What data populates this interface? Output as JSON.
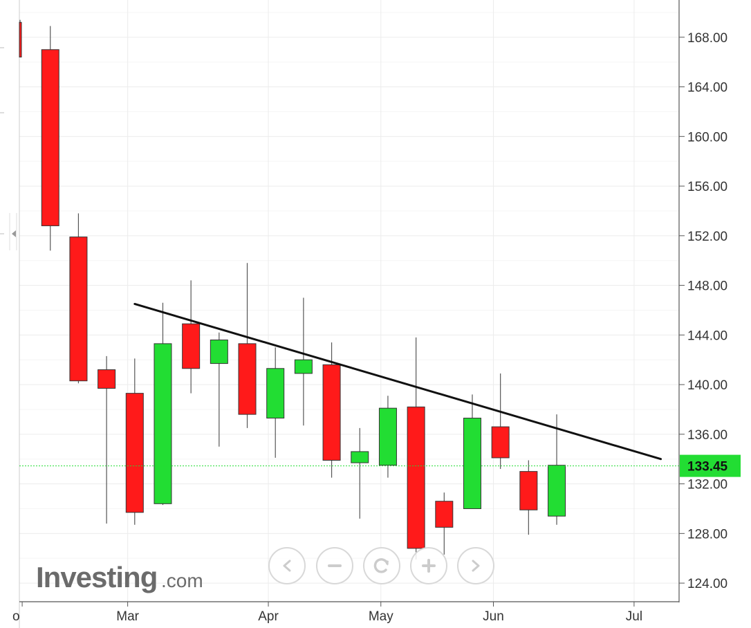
{
  "chart_data": {
    "type": "candlestick",
    "title": "",
    "xlabel": "",
    "ylabel": "",
    "ylim": [
      122.5,
      171.0
    ],
    "y_ticks": [
      "168.00",
      "164.00",
      "160.00",
      "156.00",
      "152.00",
      "148.00",
      "144.00",
      "140.00",
      "136.00",
      "132.00",
      "128.00",
      "124.00"
    ],
    "x_ticks": [
      {
        "label": "o",
        "x": 0
      },
      {
        "label": "Mar",
        "x": 3.75
      },
      {
        "label": "Apr",
        "x": 8.75
      },
      {
        "label": "May",
        "x": 12.75
      },
      {
        "label": "Jun",
        "x": 16.75
      },
      {
        "label": "Jul",
        "x": 21.75
      }
    ],
    "x_range": [
      -0.1,
      23.35
    ],
    "grid": true,
    "candles": [
      {
        "x": 1,
        "open": 167.0,
        "high": 168.9,
        "low": 150.8,
        "close": 152.8
      },
      {
        "x": 2,
        "open": 151.9,
        "high": 153.8,
        "low": 140.1,
        "close": 140.3
      },
      {
        "x": 3,
        "open": 141.2,
        "high": 142.3,
        "low": 128.8,
        "close": 139.7
      },
      {
        "x": 4,
        "open": 139.3,
        "high": 142.1,
        "low": 128.7,
        "close": 129.7
      },
      {
        "x": 5,
        "open": 130.4,
        "high": 146.6,
        "low": 130.3,
        "close": 143.3
      },
      {
        "x": 6,
        "open": 144.9,
        "high": 148.4,
        "low": 139.3,
        "close": 141.3
      },
      {
        "x": 7,
        "open": 141.7,
        "high": 144.2,
        "low": 135.0,
        "close": 143.6
      },
      {
        "x": 8,
        "open": 143.3,
        "high": 149.8,
        "low": 136.5,
        "close": 137.6
      },
      {
        "x": 9,
        "open": 137.3,
        "high": 143.0,
        "low": 134.1,
        "close": 141.3
      },
      {
        "x": 10,
        "open": 140.9,
        "high": 147.0,
        "low": 136.7,
        "close": 142.0
      },
      {
        "x": 11,
        "open": 141.6,
        "high": 143.4,
        "low": 132.5,
        "close": 133.9
      },
      {
        "x": 12,
        "open": 133.7,
        "high": 136.5,
        "low": 129.2,
        "close": 134.6
      },
      {
        "x": 13,
        "open": 133.5,
        "high": 139.1,
        "low": 132.5,
        "close": 138.1
      },
      {
        "x": 14,
        "open": 138.2,
        "high": 143.8,
        "low": 125.9,
        "close": 126.8
      },
      {
        "x": 15,
        "open": 130.6,
        "high": 131.3,
        "low": 126.3,
        "close": 128.5
      },
      {
        "x": 16,
        "open": 130.0,
        "high": 139.2,
        "low": 130.0,
        "close": 137.3
      },
      {
        "x": 17,
        "open": 136.6,
        "high": 140.9,
        "low": 133.2,
        "close": 134.1
      },
      {
        "x": 18,
        "open": 133.0,
        "high": 133.9,
        "low": 127.9,
        "close": 129.9
      },
      {
        "x": 19,
        "open": 129.4,
        "high": 137.6,
        "low": 128.7,
        "close": 133.5
      }
    ],
    "partial_candle": {
      "x": 0,
      "open": 169.2,
      "high": 169.4,
      "low": 166.4,
      "close": 166.4
    },
    "trendline": {
      "x1": 4,
      "y1": 146.5,
      "x2": 22.7,
      "y2": 134.0
    },
    "last_price": {
      "value": 133.45,
      "label": "133.45"
    },
    "colors": {
      "up": "#22dd33",
      "down": "#ff1a1a",
      "last_price": "#22dd33",
      "trendline": "#111111"
    }
  },
  "watermark": {
    "brand": "Investing",
    "suffix": ".com"
  },
  "nav_buttons": [
    {
      "name": "scroll-left-button",
      "icon": "chevron-left-icon"
    },
    {
      "name": "zoom-out-button",
      "icon": "minus-icon"
    },
    {
      "name": "reset-button",
      "icon": "refresh-icon"
    },
    {
      "name": "zoom-in-button",
      "icon": "plus-icon"
    },
    {
      "name": "scroll-right-button",
      "icon": "chevron-right-icon"
    }
  ]
}
